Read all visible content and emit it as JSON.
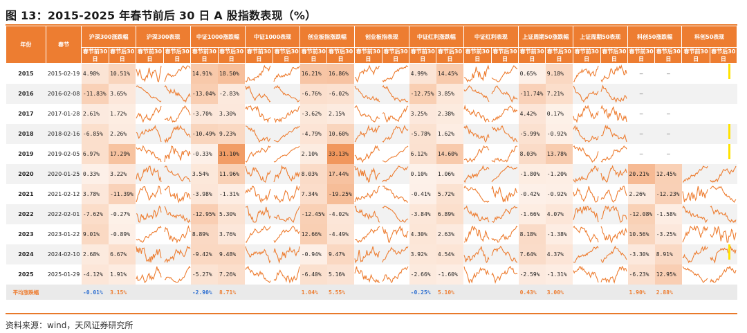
{
  "title": "图 13：2015-2025 年春节前后 30 日 A 股指数表现（%）",
  "source": "资料来源：wind，天风证券研究所",
  "colors": {
    "header": "#ed7d31",
    "line": "#ed7d31",
    "negative_avg": "#2e6fd0",
    "accent_bar": "#ffe200"
  },
  "header": {
    "year": "年份",
    "date": "春节",
    "groups": [
      {
        "change": "沪深300涨跌幅",
        "chart": "沪深300表现"
      },
      {
        "change": "中证1000涨跌幅",
        "chart": "中证1000表现"
      },
      {
        "change": "创业板指涨跌幅",
        "chart": "创业板指表现"
      },
      {
        "change": "中证红利涨跌幅",
        "chart": "中证红利表现"
      },
      {
        "change": "上证周期50涨跌幅",
        "chart": "上证周期50表现"
      },
      {
        "change": "科创50涨跌幅",
        "chart": "科创50表现"
      }
    ],
    "before": "春节前30日",
    "after": "春节后30日"
  },
  "rows": [
    {
      "year": "2015",
      "date": "2015-02-19",
      "vals": [
        [
          "4.98%",
          "10.51%"
        ],
        [
          "14.91%",
          "18.50%"
        ],
        [
          "16.21%",
          "16.86%"
        ],
        [
          "4.99%",
          "14.45%"
        ],
        [
          "0.65%",
          "9.18%"
        ],
        [
          "—",
          "—"
        ]
      ]
    },
    {
      "year": "2016",
      "date": "2016-02-08",
      "vals": [
        [
          "-11.83%",
          "3.65%"
        ],
        [
          "-13.04%",
          "-2.83%"
        ],
        [
          "-6.76%",
          "-6.02%"
        ],
        [
          "-12.75%",
          "3.85%"
        ],
        [
          "-11.74%",
          "7.21%"
        ],
        [
          "—",
          ""
        ]
      ]
    },
    {
      "year": "2017",
      "date": "2017-01-28",
      "vals": [
        [
          "2.61%",
          "1.72%"
        ],
        [
          "-3.70%",
          "3.30%"
        ],
        [
          "-3.62%",
          "2.15%"
        ],
        [
          "3.25%",
          "2.38%"
        ],
        [
          "4.42%",
          "0.17%"
        ],
        [
          "—",
          "—"
        ]
      ]
    },
    {
      "year": "2018",
      "date": "2018-02-16",
      "vals": [
        [
          "-6.85%",
          "2.26%"
        ],
        [
          "-10.49%",
          "9.23%"
        ],
        [
          "-4.79%",
          "10.60%"
        ],
        [
          "-5.78%",
          "1.62%"
        ],
        [
          "-5.99%",
          "-0.92%"
        ],
        [
          "—",
          "—"
        ]
      ]
    },
    {
      "year": "2019",
      "date": "2019-02-05",
      "vals": [
        [
          "6.97%",
          "17.29%"
        ],
        [
          "-0.33%",
          "31.10%"
        ],
        [
          "2.10%",
          "33.13%"
        ],
        [
          "6.12%",
          "14.60%"
        ],
        [
          "8.03%",
          "13.78%"
        ],
        [
          "—",
          "—"
        ]
      ]
    },
    {
      "year": "2020",
      "date": "2020-01-25",
      "vals": [
        [
          "0.33%",
          "3.22%"
        ],
        [
          "3.54%",
          "11.96%"
        ],
        [
          "8.03%",
          "17.44%"
        ],
        [
          "0.10%",
          "1.06%"
        ],
        [
          "-1.80%",
          "-1.20%"
        ],
        [
          "20.21%",
          "12.45%"
        ]
      ]
    },
    {
      "year": "2021",
      "date": "2021-02-12",
      "vals": [
        [
          "3.78%",
          "-11.39%"
        ],
        [
          "-3.98%",
          "-1.31%"
        ],
        [
          "7.34%",
          "-19.25%"
        ],
        [
          "-0.41%",
          "5.72%"
        ],
        [
          "-0.42%",
          "-0.92%"
        ],
        [
          "2.26%",
          "-12.23%"
        ]
      ]
    },
    {
      "year": "2022",
      "date": "2022-02-01",
      "vals": [
        [
          "-7.62%",
          "-0.27%"
        ],
        [
          "-12.95%",
          "5.30%"
        ],
        [
          "-12.45%",
          "-4.02%"
        ],
        [
          "-3.84%",
          "6.89%"
        ],
        [
          "-1.66%",
          "4.07%"
        ],
        [
          "-12.08%",
          "-1.58%"
        ]
      ]
    },
    {
      "year": "2023",
      "date": "2023-01-22",
      "vals": [
        [
          "9.01%",
          "-0.89%"
        ],
        [
          "8.89%",
          "3.76%"
        ],
        [
          "12.66%",
          "-4.49%"
        ],
        [
          "4.30%",
          "2.63%"
        ],
        [
          "8.18%",
          "-1.38%"
        ],
        [
          "10.56%",
          "-3.25%"
        ]
      ]
    },
    {
      "year": "2024",
      "date": "2024-02-10",
      "vals": [
        [
          "2.68%",
          "6.67%"
        ],
        [
          "-9.42%",
          "9.48%"
        ],
        [
          "-0.94%",
          "9.47%"
        ],
        [
          "3.92%",
          "4.54%"
        ],
        [
          "7.64%",
          "4.37%"
        ],
        [
          "-3.30%",
          "8.91%"
        ]
      ]
    },
    {
      "year": "2025",
      "date": "2025-01-29",
      "vals": [
        [
          "-4.12%",
          "1.91%"
        ],
        [
          "-5.27%",
          "7.26%"
        ],
        [
          "-6.40%",
          "5.16%"
        ],
        [
          "-2.66%",
          "-1.60%"
        ],
        [
          "-2.59%",
          "-1.31%"
        ],
        [
          "-6.23%",
          "12.95%"
        ]
      ]
    }
  ],
  "average": {
    "label": "平均涨跌幅",
    "vals": [
      [
        "-0.01%",
        "3.15%"
      ],
      [
        "-2.90%",
        "8.71%"
      ],
      [
        "1.04%",
        "5.55%"
      ],
      [
        "-0.25%",
        "5.10%"
      ],
      [
        "0.43%",
        "3.00%"
      ],
      [
        "1.90%",
        "2.88%"
      ]
    ]
  }
}
